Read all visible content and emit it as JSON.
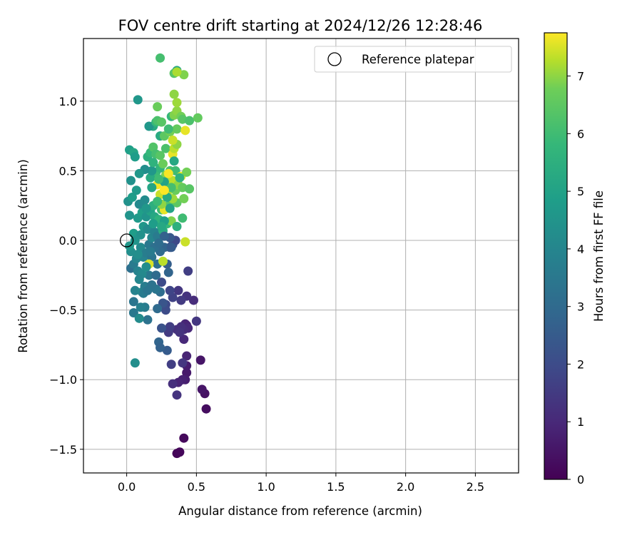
{
  "chart_data": {
    "type": "scatter",
    "title": "FOV centre drift starting at 2024/12/26 12:28:46",
    "xlabel": "Angular distance from reference (arcmin)",
    "ylabel": "Rotation from reference (arcmin)",
    "xlim": [
      -0.31,
      2.81
    ],
    "ylim": [
      -1.67,
      1.45
    ],
    "x_ticks": [
      0.0,
      0.5,
      1.0,
      1.5,
      2.0,
      2.5
    ],
    "x_tick_labels": [
      "0.0",
      "0.5",
      "1.0",
      "1.5",
      "2.0",
      "2.5"
    ],
    "y_ticks": [
      -1.5,
      -1.0,
      -0.5,
      0.0,
      0.5,
      1.0
    ],
    "y_tick_labels": [
      "−1.5",
      "−1.0",
      "−0.5",
      "0.0",
      "0.5",
      "1.0"
    ],
    "grid": true,
    "legend": {
      "position": "top-right",
      "label": "Reference platepar"
    },
    "reference_point": {
      "x": 0.0,
      "y": 0.0
    },
    "colorbar": {
      "label": "Hours from first FF file",
      "range": [
        0,
        7.75
      ],
      "ticks": [
        0,
        1,
        2,
        3,
        4,
        5,
        6,
        7
      ],
      "tick_labels": [
        "0",
        "1",
        "2",
        "3",
        "4",
        "5",
        "6",
        "7"
      ],
      "colormap": "viridis"
    },
    "points": [
      {
        "x": 0.36,
        "y": -1.53,
        "t": 0.1
      },
      {
        "x": 0.38,
        "y": -1.52,
        "t": 0.15
      },
      {
        "x": 0.41,
        "y": -1.42,
        "t": 0.2
      },
      {
        "x": 0.57,
        "y": -1.21,
        "t": 0.3
      },
      {
        "x": 0.56,
        "y": -1.1,
        "t": 0.4
      },
      {
        "x": 0.54,
        "y": -1.07,
        "t": 0.5
      },
      {
        "x": 0.53,
        "y": -0.86,
        "t": 0.5
      },
      {
        "x": 0.43,
        "y": -0.95,
        "t": 0.6
      },
      {
        "x": 0.42,
        "y": -1.0,
        "t": 0.7
      },
      {
        "x": 0.4,
        "y": -1.0,
        "t": 0.8
      },
      {
        "x": 0.37,
        "y": -1.02,
        "t": 0.9
      },
      {
        "x": 0.33,
        "y": -1.03,
        "t": 1.2
      },
      {
        "x": 0.36,
        "y": -1.11,
        "t": 1.3
      },
      {
        "x": 0.43,
        "y": -0.9,
        "t": 0.7
      },
      {
        "x": 0.43,
        "y": -0.83,
        "t": 0.9
      },
      {
        "x": 0.4,
        "y": -0.88,
        "t": 1.4
      },
      {
        "x": 0.32,
        "y": -0.89,
        "t": 1.6
      },
      {
        "x": 0.41,
        "y": -0.71,
        "t": 1.0
      },
      {
        "x": 0.43,
        "y": -0.61,
        "t": 0.8
      },
      {
        "x": 0.42,
        "y": -0.6,
        "t": 0.9
      },
      {
        "x": 0.44,
        "y": -0.63,
        "t": 1.0
      },
      {
        "x": 0.41,
        "y": -0.64,
        "t": 1.1
      },
      {
        "x": 0.39,
        "y": -0.62,
        "t": 1.2
      },
      {
        "x": 0.36,
        "y": -0.64,
        "t": 1.2
      },
      {
        "x": 0.38,
        "y": -0.66,
        "t": 1.3
      },
      {
        "x": 0.5,
        "y": -0.58,
        "t": 1.4
      },
      {
        "x": 0.3,
        "y": -0.66,
        "t": 1.5
      },
      {
        "x": 0.31,
        "y": -0.62,
        "t": 1.6
      },
      {
        "x": 0.25,
        "y": -0.63,
        "t": 2.2
      },
      {
        "x": 0.29,
        "y": -0.79,
        "t": 2.5
      },
      {
        "x": 0.23,
        "y": -0.73,
        "t": 2.8
      },
      {
        "x": 0.24,
        "y": -0.77,
        "t": 2.7
      },
      {
        "x": 0.48,
        "y": -0.43,
        "t": 1.1
      },
      {
        "x": 0.43,
        "y": -0.4,
        "t": 1.3
      },
      {
        "x": 0.37,
        "y": -0.36,
        "t": 1.4
      },
      {
        "x": 0.39,
        "y": -0.43,
        "t": 1.5
      },
      {
        "x": 0.33,
        "y": -0.41,
        "t": 1.7
      },
      {
        "x": 0.31,
        "y": -0.36,
        "t": 1.8
      },
      {
        "x": 0.28,
        "y": -0.46,
        "t": 1.9
      },
      {
        "x": 0.28,
        "y": -0.5,
        "t": 2.0
      },
      {
        "x": 0.26,
        "y": -0.45,
        "t": 2.3
      },
      {
        "x": 0.44,
        "y": -0.22,
        "t": 1.6
      },
      {
        "x": 0.25,
        "y": -0.3,
        "t": 2.0
      },
      {
        "x": 0.22,
        "y": -0.49,
        "t": 3.0
      },
      {
        "x": 0.24,
        "y": -0.37,
        "t": 3.1
      },
      {
        "x": 0.21,
        "y": -0.35,
        "t": 3.4
      },
      {
        "x": 0.15,
        "y": -0.57,
        "t": 3.3
      },
      {
        "x": 0.13,
        "y": -0.48,
        "t": 3.6
      },
      {
        "x": 0.1,
        "y": -0.48,
        "t": 3.8
      },
      {
        "x": 0.05,
        "y": -0.52,
        "t": 3.5
      },
      {
        "x": 0.05,
        "y": -0.44,
        "t": 3.4
      },
      {
        "x": 0.06,
        "y": -0.36,
        "t": 3.9
      },
      {
        "x": 0.09,
        "y": -0.56,
        "t": 4.2
      },
      {
        "x": 0.11,
        "y": -0.37,
        "t": 4.1
      },
      {
        "x": 0.13,
        "y": -0.33,
        "t": 3.7
      },
      {
        "x": 0.16,
        "y": -0.25,
        "t": 3.5
      },
      {
        "x": 0.18,
        "y": -0.32,
        "t": 3.3
      },
      {
        "x": 0.21,
        "y": -0.25,
        "t": 3.0
      },
      {
        "x": 0.3,
        "y": -0.23,
        "t": 2.8
      },
      {
        "x": 0.29,
        "y": -0.17,
        "t": 2.6
      },
      {
        "x": 0.31,
        "y": -0.05,
        "t": 2.2
      },
      {
        "x": 0.33,
        "y": -0.03,
        "t": 2.1
      },
      {
        "x": 0.35,
        "y": 0.0,
        "t": 1.9
      },
      {
        "x": 0.31,
        "y": 0.02,
        "t": 2.4
      },
      {
        "x": 0.27,
        "y": -0.05,
        "t": 2.8
      },
      {
        "x": 0.24,
        "y": -0.08,
        "t": 3.0
      },
      {
        "x": 0.22,
        "y": -0.17,
        "t": 3.2
      },
      {
        "x": 0.06,
        "y": -0.88,
        "t": 4.3
      },
      {
        "x": 0.03,
        "y": -0.2,
        "t": 3.2
      },
      {
        "x": 0.05,
        "y": -0.17,
        "t": 3.6
      },
      {
        "x": 0.07,
        "y": -0.13,
        "t": 4.0
      },
      {
        "x": 0.03,
        "y": -0.08,
        "t": 4.3
      },
      {
        "x": 0.02,
        "y": -0.04,
        "t": 4.6
      },
      {
        "x": 0.05,
        "y": 0.05,
        "t": 4.8
      },
      {
        "x": 0.1,
        "y": -0.05,
        "t": 4.1
      },
      {
        "x": 0.12,
        "y": -0.12,
        "t": 3.9
      },
      {
        "x": 0.14,
        "y": -0.09,
        "t": 3.7
      },
      {
        "x": 0.16,
        "y": -0.03,
        "t": 3.5
      },
      {
        "x": 0.18,
        "y": -0.12,
        "t": 3.4
      },
      {
        "x": 0.2,
        "y": -0.05,
        "t": 3.2
      },
      {
        "x": 0.1,
        "y": 0.04,
        "t": 4.4
      },
      {
        "x": 0.12,
        "y": 0.1,
        "t": 4.6
      },
      {
        "x": 0.15,
        "y": 0.08,
        "t": 4.2
      },
      {
        "x": 0.18,
        "y": 0.02,
        "t": 4.0
      },
      {
        "x": 0.2,
        "y": 0.06,
        "t": 3.9
      },
      {
        "x": 0.22,
        "y": 0.03,
        "t": 3.6
      },
      {
        "x": 0.08,
        "y": 0.16,
        "t": 4.7
      },
      {
        "x": 0.11,
        "y": 0.2,
        "t": 4.9
      },
      {
        "x": 0.14,
        "y": 0.17,
        "t": 4.5
      },
      {
        "x": 0.02,
        "y": 0.18,
        "t": 4.5
      },
      {
        "x": 0.01,
        "y": 0.28,
        "t": 4.4
      },
      {
        "x": 0.04,
        "y": 0.31,
        "t": 4.8
      },
      {
        "x": 0.09,
        "y": 0.26,
        "t": 4.1
      },
      {
        "x": 0.13,
        "y": 0.29,
        "t": 4.2
      },
      {
        "x": 0.17,
        "y": 0.21,
        "t": 5.0
      },
      {
        "x": 0.2,
        "y": 0.17,
        "t": 5.2
      },
      {
        "x": 0.23,
        "y": 0.15,
        "t": 5.6
      },
      {
        "x": 0.26,
        "y": 0.07,
        "t": 5.4
      },
      {
        "x": 0.29,
        "y": 0.12,
        "t": 5.8
      },
      {
        "x": 0.25,
        "y": 0.22,
        "t": 6.0
      },
      {
        "x": 0.3,
        "y": 0.25,
        "t": 6.3
      },
      {
        "x": 0.36,
        "y": 0.27,
        "t": 6.5
      },
      {
        "x": 0.4,
        "y": 0.16,
        "t": 6.0
      },
      {
        "x": 0.41,
        "y": 0.3,
        "t": 6.8
      },
      {
        "x": 0.42,
        "y": -0.01,
        "t": 7.4
      },
      {
        "x": 0.16,
        "y": -0.17,
        "t": 7.5
      },
      {
        "x": 0.26,
        "y": -0.15,
        "t": 7.3
      },
      {
        "x": 0.27,
        "y": 0.22,
        "t": 7.6
      },
      {
        "x": 0.29,
        "y": 0.34,
        "t": 7.2
      },
      {
        "x": 0.33,
        "y": 0.3,
        "t": 7.1
      },
      {
        "x": 0.24,
        "y": 0.33,
        "t": 7.4
      },
      {
        "x": 0.25,
        "y": 0.26,
        "t": 7.0
      },
      {
        "x": 0.32,
        "y": 0.14,
        "t": 6.9
      },
      {
        "x": 0.35,
        "y": 0.36,
        "t": 6.7
      },
      {
        "x": 0.22,
        "y": 0.4,
        "t": 7.7
      },
      {
        "x": 0.3,
        "y": 0.41,
        "t": 7.5
      },
      {
        "x": 0.33,
        "y": 0.43,
        "t": 7.3
      },
      {
        "x": 0.37,
        "y": 0.4,
        "t": 7.0
      },
      {
        "x": 0.4,
        "y": 0.38,
        "t": 6.6
      },
      {
        "x": 0.45,
        "y": 0.37,
        "t": 6.4
      },
      {
        "x": 0.28,
        "y": 0.47,
        "t": 6.9
      },
      {
        "x": 0.31,
        "y": 0.5,
        "t": 6.2
      },
      {
        "x": 0.35,
        "y": 0.5,
        "t": 6.0
      },
      {
        "x": 0.39,
        "y": 0.46,
        "t": 7.6
      },
      {
        "x": 0.43,
        "y": 0.49,
        "t": 6.8
      },
      {
        "x": 0.21,
        "y": 0.49,
        "t": 5.9
      },
      {
        "x": 0.24,
        "y": 0.52,
        "t": 5.7
      },
      {
        "x": 0.17,
        "y": 0.45,
        "t": 5.3
      },
      {
        "x": 0.18,
        "y": 0.38,
        "t": 5.1
      },
      {
        "x": 0.18,
        "y": 0.5,
        "t": 4.6
      },
      {
        "x": 0.13,
        "y": 0.51,
        "t": 4.3
      },
      {
        "x": 0.09,
        "y": 0.48,
        "t": 4.6
      },
      {
        "x": 0.07,
        "y": 0.36,
        "t": 4.7
      },
      {
        "x": 0.03,
        "y": 0.43,
        "t": 4.4
      },
      {
        "x": 0.02,
        "y": 0.65,
        "t": 4.9
      },
      {
        "x": 0.05,
        "y": 0.63,
        "t": 5.1
      },
      {
        "x": 0.06,
        "y": 0.6,
        "t": 4.8
      },
      {
        "x": 0.15,
        "y": 0.6,
        "t": 5.5
      },
      {
        "x": 0.17,
        "y": 0.63,
        "t": 5.8
      },
      {
        "x": 0.19,
        "y": 0.67,
        "t": 6.3
      },
      {
        "x": 0.21,
        "y": 0.62,
        "t": 6.1
      },
      {
        "x": 0.24,
        "y": 0.61,
        "t": 6.4
      },
      {
        "x": 0.28,
        "y": 0.66,
        "t": 6.2
      },
      {
        "x": 0.33,
        "y": 0.62,
        "t": 7.6
      },
      {
        "x": 0.34,
        "y": 0.66,
        "t": 7.3
      },
      {
        "x": 0.36,
        "y": 0.69,
        "t": 7.0
      },
      {
        "x": 0.34,
        "y": 0.57,
        "t": 5.2
      },
      {
        "x": 0.24,
        "y": 0.75,
        "t": 5.3
      },
      {
        "x": 0.27,
        "y": 0.75,
        "t": 6.5
      },
      {
        "x": 0.31,
        "y": 0.78,
        "t": 6.8
      },
      {
        "x": 0.33,
        "y": 0.72,
        "t": 7.4
      },
      {
        "x": 0.36,
        "y": 0.8,
        "t": 6.6
      },
      {
        "x": 0.42,
        "y": 0.79,
        "t": 7.6
      },
      {
        "x": 0.19,
        "y": 0.82,
        "t": 5.3
      },
      {
        "x": 0.16,
        "y": 0.82,
        "t": 4.6
      },
      {
        "x": 0.21,
        "y": 0.85,
        "t": 5.8
      },
      {
        "x": 0.22,
        "y": 0.86,
        "t": 6.2
      },
      {
        "x": 0.25,
        "y": 0.85,
        "t": 6.4
      },
      {
        "x": 0.3,
        "y": 0.8,
        "t": 6.0
      },
      {
        "x": 0.32,
        "y": 0.89,
        "t": 5.8
      },
      {
        "x": 0.34,
        "y": 0.9,
        "t": 6.9
      },
      {
        "x": 0.36,
        "y": 0.93,
        "t": 7.0
      },
      {
        "x": 0.39,
        "y": 0.89,
        "t": 6.8
      },
      {
        "x": 0.4,
        "y": 0.87,
        "t": 6.4
      },
      {
        "x": 0.45,
        "y": 0.86,
        "t": 6.2
      },
      {
        "x": 0.51,
        "y": 0.88,
        "t": 6.6
      },
      {
        "x": 0.22,
        "y": 0.96,
        "t": 6.7
      },
      {
        "x": 0.36,
        "y": 0.99,
        "t": 7.1
      },
      {
        "x": 0.34,
        "y": 1.05,
        "t": 7.0
      },
      {
        "x": 0.08,
        "y": 1.01,
        "t": 4.6
      },
      {
        "x": 0.34,
        "y": 1.2,
        "t": 6.4
      },
      {
        "x": 0.36,
        "y": 1.22,
        "t": 5.2
      },
      {
        "x": 0.41,
        "y": 1.19,
        "t": 6.9
      },
      {
        "x": 0.36,
        "y": 1.21,
        "t": 7.2
      },
      {
        "x": 0.24,
        "y": 1.31,
        "t": 6.1
      },
      {
        "x": 0.19,
        "y": 0.25,
        "t": 5.5
      },
      {
        "x": 0.22,
        "y": 0.28,
        "t": 5.9
      },
      {
        "x": 0.27,
        "y": 0.42,
        "t": 5.0
      },
      {
        "x": 0.29,
        "y": 0.31,
        "t": 5.3
      },
      {
        "x": 0.32,
        "y": 0.38,
        "t": 6.1
      },
      {
        "x": 0.27,
        "y": 0.14,
        "t": 4.9
      },
      {
        "x": 0.31,
        "y": 0.23,
        "t": 5.0
      },
      {
        "x": 0.19,
        "y": 0.12,
        "t": 4.8
      },
      {
        "x": 0.08,
        "y": -0.22,
        "t": 3.9
      },
      {
        "x": 0.11,
        "y": -0.24,
        "t": 4.1
      },
      {
        "x": 0.14,
        "y": -0.19,
        "t": 4.3
      },
      {
        "x": 0.09,
        "y": -0.28,
        "t": 4.0
      },
      {
        "x": 0.12,
        "y": -0.38,
        "t": 3.6
      },
      {
        "x": 0.15,
        "y": -0.36,
        "t": 3.4
      },
      {
        "x": 0.17,
        "y": -0.08,
        "t": 3.6
      },
      {
        "x": 0.27,
        "y": 0.03,
        "t": 2.7
      },
      {
        "x": 0.32,
        "y": -0.05,
        "t": 2.5
      },
      {
        "x": 0.23,
        "y": -0.02,
        "t": 3.1
      },
      {
        "x": 0.25,
        "y": 0.1,
        "t": 5.2
      },
      {
        "x": 0.14,
        "y": 0.23,
        "t": 4.6
      },
      {
        "x": 0.06,
        "y": 0.0,
        "t": 4.5
      },
      {
        "x": 0.08,
        "y": -0.1,
        "t": 4.3
      },
      {
        "x": 0.36,
        "y": 0.1,
        "t": 5.5
      },
      {
        "x": 0.38,
        "y": 0.45,
        "t": 5.6
      },
      {
        "x": 0.26,
        "y": 0.55,
        "t": 6.7
      },
      {
        "x": 0.3,
        "y": 0.48,
        "t": 7.7
      },
      {
        "x": 0.19,
        "y": 0.56,
        "t": 5.6
      },
      {
        "x": 0.27,
        "y": 0.36,
        "t": 7.8
      },
      {
        "x": 0.23,
        "y": 0.44,
        "t": 6.0
      }
    ]
  }
}
